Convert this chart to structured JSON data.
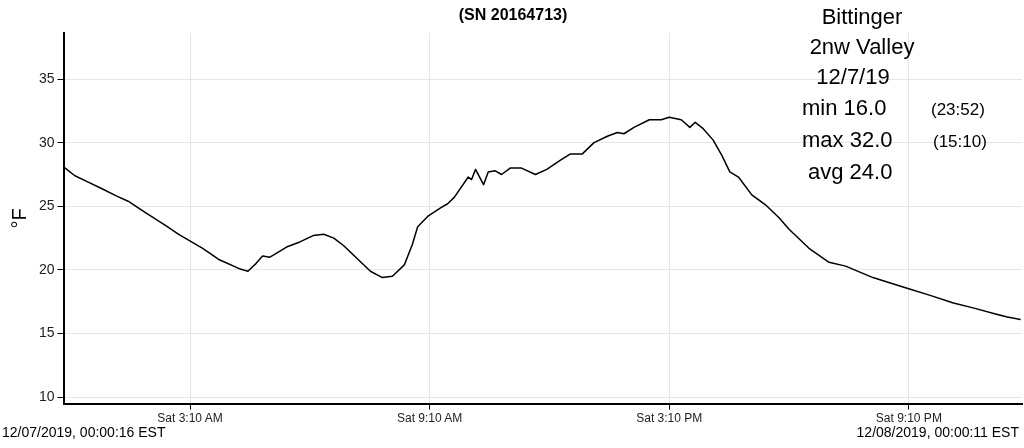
{
  "chart_data": {
    "type": "line",
    "title": "(SN 20164713)",
    "ylabel": "°F",
    "x": [
      "2019-12-07T00:00",
      "2019-12-07T00:17",
      "2019-12-07T00:37",
      "2019-12-07T00:57",
      "2019-12-07T01:20",
      "2019-12-07T01:37",
      "2019-12-07T02:03",
      "2019-12-07T02:33",
      "2019-12-07T02:53",
      "2019-12-07T03:29",
      "2019-12-07T03:54",
      "2019-12-07T04:24",
      "2019-12-07T04:37",
      "2019-12-07T04:49",
      "2019-12-07T04:59",
      "2019-12-07T05:10",
      "2019-12-07T05:35",
      "2019-12-07T05:55",
      "2019-12-07T06:15",
      "2019-12-07T06:31",
      "2019-12-07T06:46",
      "2019-12-07T07:01",
      "2019-12-07T07:21",
      "2019-12-07T07:41",
      "2019-12-07T07:59",
      "2019-12-07T08:14",
      "2019-12-07T08:32",
      "2019-12-07T08:44",
      "2019-12-07T08:52",
      "2019-12-07T09:07",
      "2019-12-07T09:27",
      "2019-12-07T09:37",
      "2019-12-07T09:47",
      "2019-12-07T10:08",
      "2019-12-07T10:13",
      "2019-12-07T10:19",
      "2019-12-07T10:31",
      "2019-12-07T10:38",
      "2019-12-07T10:48",
      "2019-12-07T10:58",
      "2019-12-07T11:11",
      "2019-12-07T11:28",
      "2019-12-07T11:49",
      "2019-12-07T12:06",
      "2019-12-07T12:26",
      "2019-12-07T12:41",
      "2019-12-07T12:59",
      "2019-12-07T13:17",
      "2019-12-07T13:37",
      "2019-12-07T13:52",
      "2019-12-07T14:02",
      "2019-12-07T14:17",
      "2019-12-07T14:40",
      "2019-12-07T14:58",
      "2019-12-07T15:10",
      "2019-12-07T15:28",
      "2019-12-07T15:41",
      "2019-12-07T15:49",
      "2019-12-07T16:01",
      "2019-12-07T16:16",
      "2019-12-07T16:29",
      "2019-12-07T16:41",
      "2019-12-07T16:54",
      "2019-12-07T17:14",
      "2019-12-07T17:35",
      "2019-12-07T17:55",
      "2019-12-07T18:10",
      "2019-12-07T18:40",
      "2019-12-07T19:10",
      "2019-12-07T19:35",
      "2019-12-07T20:16",
      "2019-12-07T20:41",
      "2019-12-07T21:11",
      "2019-12-07T21:42",
      "2019-12-07T22:17",
      "2019-12-07T22:48",
      "2019-12-07T23:23",
      "2019-12-07T23:38",
      "2019-12-07T23:58"
    ],
    "series": [
      {
        "color": "#000000",
        "values": [
          28.1,
          27.4,
          26.9,
          26.4,
          25.8,
          25.4,
          24.5,
          23.5,
          22.8,
          21.7,
          20.8,
          20.1,
          19.9,
          20.5,
          21.1,
          21.0,
          21.8,
          22.2,
          22.7,
          22.8,
          22.5,
          21.9,
          20.9,
          19.9,
          19.4,
          19.5,
          20.4,
          22.0,
          23.4,
          24.2,
          24.9,
          25.2,
          25.7,
          27.3,
          27.1,
          27.9,
          26.7,
          27.7,
          27.8,
          27.5,
          28.0,
          28.0,
          27.5,
          27.9,
          28.6,
          29.1,
          29.1,
          30.0,
          30.5,
          30.8,
          30.7,
          31.2,
          31.8,
          31.8,
          32.0,
          31.8,
          31.2,
          31.6,
          31.1,
          30.2,
          29.0,
          27.7,
          27.3,
          25.9,
          25.1,
          24.1,
          23.2,
          21.7,
          20.6,
          20.3,
          19.4,
          19.0,
          18.5,
          18.0,
          17.4,
          17.0,
          16.5,
          16.3,
          16.1
        ]
      }
    ],
    "xlim": [
      "2019-12-07T00:00",
      "2019-12-08T00:00"
    ],
    "xticks": [
      {
        "value": "2019-12-07T03:10",
        "label": "Sat 3:10 AM"
      },
      {
        "value": "2019-12-07T09:10",
        "label": "Sat 9:10 AM"
      },
      {
        "value": "2019-12-07T15:10",
        "label": "Sat 3:10 PM"
      },
      {
        "value": "2019-12-07T21:10",
        "label": "Sat 9:10 PM"
      }
    ],
    "ylim": [
      9.5,
      38.6
    ],
    "yticks": [
      10,
      15,
      20,
      25,
      30,
      35
    ],
    "grid": true,
    "legend": false,
    "marker": "none",
    "line_style": "solid",
    "annotations": [
      "Bittinger",
      "2nw Valley",
      "12/7/19",
      "min 16.0",
      "(23:52)",
      "max 32.0",
      "(15:10)",
      "avg 24.0",
      "12/07/2019, 00:00:16 EST",
      "12/08/2019, 00:00:11 EST"
    ]
  }
}
